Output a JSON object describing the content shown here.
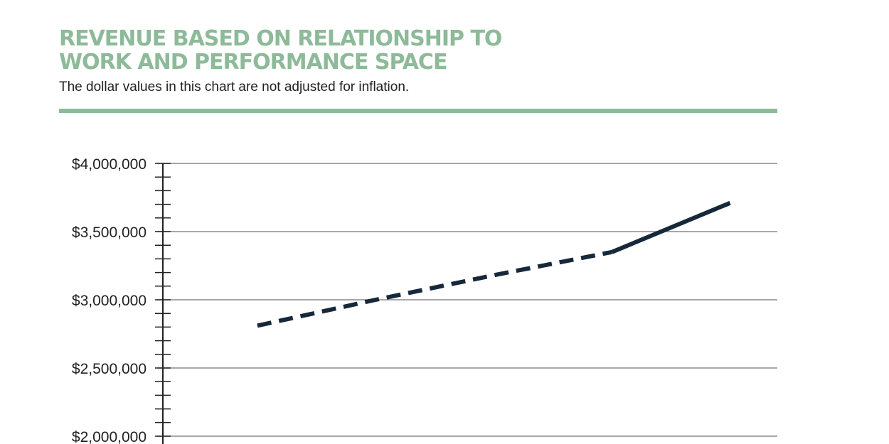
{
  "header": {
    "title_line1": "REVENUE BASED ON RELATIONSHIP TO",
    "title_line2": "WORK AND PERFORMANCE SPACE",
    "subtitle": "The dollar values in this chart are not adjusted for inflation."
  },
  "colors": {
    "accent": "#8dba98",
    "line": "#16283a",
    "grid": "#8a8a8a",
    "text": "#222222"
  },
  "chart_data": {
    "type": "line",
    "y_ticks": [
      {
        "value": 4000000,
        "label": "$4,000,000"
      },
      {
        "value": 3500000,
        "label": "$3,500,000"
      },
      {
        "value": 3000000,
        "label": "$3,000,000"
      },
      {
        "value": 2500000,
        "label": "$2,500,000"
      },
      {
        "value": 2000000,
        "label": "$2,000,000"
      }
    ],
    "ylim": [
      2000000,
      4000000
    ],
    "minor_ticks_per_major": 5,
    "grid": true,
    "series": [
      {
        "style": "dashed",
        "points": [
          {
            "x": 0,
            "y": 2810000
          },
          {
            "x": 1,
            "y": 3000000
          },
          {
            "x": 2,
            "y": 3180000
          },
          {
            "x": 3,
            "y": 3350000
          }
        ]
      },
      {
        "style": "solid",
        "points": [
          {
            "x": 3,
            "y": 3350000
          },
          {
            "x": 4,
            "y": 3710000
          }
        ]
      }
    ],
    "xlim": [
      -0.8,
      4.4
    ]
  }
}
